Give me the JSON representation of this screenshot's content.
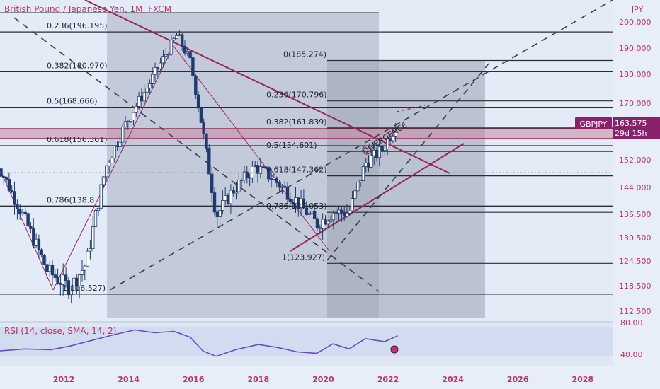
{
  "title": "British Pound / Japanese Yen, 1M, FXCM",
  "currency": "JPY",
  "colors": {
    "price_axis_text": "#c0306a",
    "trend_line": "#9a2360",
    "fib_line": "#2a2d36",
    "rsi_line": "#6a4bc4",
    "up_candle": "#ffffff",
    "down_candle": "#1f3b6e",
    "resistance_band": "#c48aa0"
  },
  "badge": {
    "symbol": "GBPJPY",
    "price": "163.575",
    "countdown": "29d 15h"
  },
  "annotation": "DIVERGENCE",
  "fib_left": [
    {
      "label": "0.236(196.195)",
      "value": 196.195
    },
    {
      "label": "0.382(180.970)",
      "value": 180.97
    },
    {
      "label": "0.5(168.666)",
      "value": 168.666
    },
    {
      "label": "0.618(156.361)",
      "value": 156.361
    },
    {
      "label": "0.786(138.8",
      "value": 138.8
    },
    {
      "label": "1(116.527)",
      "value": 116.527
    }
  ],
  "fib_right": [
    {
      "label": "0(185.274)",
      "value": 185.274
    },
    {
      "label": "0.236(170.796)",
      "value": 170.796
    },
    {
      "label": "0.382(161.839)",
      "value": 161.839
    },
    {
      "label": "0.5(154.601)",
      "value": 154.601
    },
    {
      "label": "0.618(147.362)",
      "value": 147.362
    },
    {
      "label": "0.786(137.053)",
      "value": 137.053
    },
    {
      "label": "1(123.927)",
      "value": 123.927
    }
  ],
  "rsi": {
    "label": "RSI (14, close, SMA, 14, 2)",
    "ticks": [
      "80.00",
      "40.00"
    ]
  },
  "chart_data": {
    "type": "candlestick",
    "title": "British Pound / Japanese Yen, 1M, FXCM",
    "ylabel": "JPY",
    "y_ticks": [
      "200.000",
      "190.000",
      "180.000",
      "170.000",
      "163.575",
      "152.000",
      "144.000",
      "136.500",
      "130.500",
      "124.500",
      "118.500",
      "112.500"
    ],
    "x_ticks": [
      "2012",
      "2014",
      "2016",
      "2018",
      "2020",
      "2022",
      "2024",
      "2026",
      "2028"
    ],
    "price_path": [
      {
        "year": 2009.9,
        "price": 152
      },
      {
        "year": 2011.5,
        "price": 122
      },
      {
        "year": 2012.2,
        "price": 118
      },
      {
        "year": 2012.7,
        "price": 124
      },
      {
        "year": 2013.3,
        "price": 150
      },
      {
        "year": 2013.9,
        "price": 163
      },
      {
        "year": 2014.6,
        "price": 176
      },
      {
        "year": 2015.5,
        "price": 195
      },
      {
        "year": 2015.9,
        "price": 185
      },
      {
        "year": 2016.3,
        "price": 160
      },
      {
        "year": 2016.7,
        "price": 136
      },
      {
        "year": 2017.2,
        "price": 143
      },
      {
        "year": 2017.9,
        "price": 150
      },
      {
        "year": 2018.4,
        "price": 147
      },
      {
        "year": 2019.2,
        "price": 140
      },
      {
        "year": 2019.8,
        "price": 134
      },
      {
        "year": 2020.3,
        "price": 137
      },
      {
        "year": 2020.8,
        "price": 137
      },
      {
        "year": 2021.3,
        "price": 151
      },
      {
        "year": 2021.8,
        "price": 155
      },
      {
        "year": 2022.3,
        "price": 163.575
      }
    ],
    "fibonacci": {
      "left": [
        196.195,
        180.97,
        168.666,
        156.361,
        138.8,
        116.527
      ],
      "right": [
        185.274,
        170.796,
        161.839,
        154.601,
        147.362,
        137.053,
        123.927
      ]
    },
    "rsi": {
      "label": "RSI (14, close, SMA, 14, 2)",
      "ylim": [
        30,
        85
      ],
      "points": [
        {
          "year": 2009.9,
          "value": 45
        },
        {
          "year": 2010.8,
          "value": 48
        },
        {
          "year": 2011.6,
          "value": 47
        },
        {
          "year": 2012.2,
          "value": 52
        },
        {
          "year": 2012.9,
          "value": 60
        },
        {
          "year": 2013.6,
          "value": 68
        },
        {
          "year": 2014.2,
          "value": 74
        },
        {
          "year": 2014.8,
          "value": 70
        },
        {
          "year": 2015.4,
          "value": 72
        },
        {
          "year": 2015.9,
          "value": 64
        },
        {
          "year": 2016.3,
          "value": 45
        },
        {
          "year": 2016.7,
          "value": 38
        },
        {
          "year": 2017.3,
          "value": 47
        },
        {
          "year": 2018.0,
          "value": 54
        },
        {
          "year": 2018.6,
          "value": 50
        },
        {
          "year": 2019.2,
          "value": 44
        },
        {
          "year": 2019.8,
          "value": 42
        },
        {
          "year": 2020.3,
          "value": 55
        },
        {
          "year": 2020.8,
          "value": 48
        },
        {
          "year": 2021.3,
          "value": 62
        },
        {
          "year": 2021.9,
          "value": 58
        },
        {
          "year": 2022.3,
          "value": 66
        }
      ]
    }
  }
}
